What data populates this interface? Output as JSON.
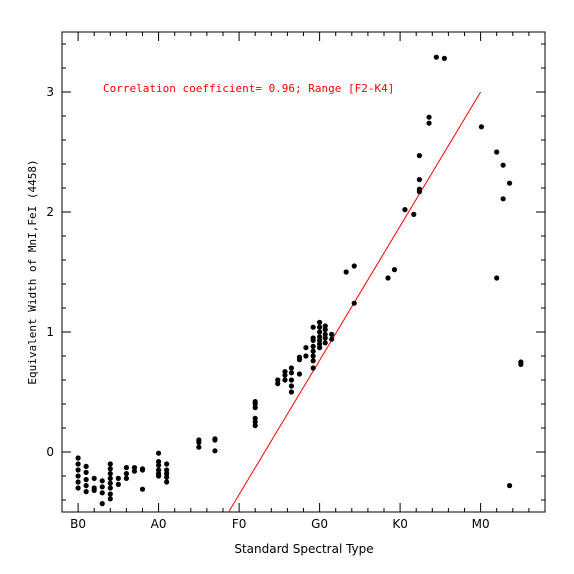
{
  "chart_data": {
    "type": "scatter",
    "xlabel": "Standard Spectral Type",
    "ylabel": "Equivalent Width of MnI,FeI (4458)",
    "annotation": "Correlation coefficient= 0.96; Range [F2-K4]",
    "annotation_color": "#ff0000",
    "point_color": "#000000",
    "fit_color": "#ff0000",
    "grid": false,
    "xlim": [
      -2,
      58
    ],
    "ylim": [
      -0.5,
      3.5
    ],
    "x_ticks": [
      {
        "value": 0,
        "label": "B0"
      },
      {
        "value": 10,
        "label": "A0"
      },
      {
        "value": 20,
        "label": "F0"
      },
      {
        "value": 30,
        "label": "G0"
      },
      {
        "value": 40,
        "label": "K0"
      },
      {
        "value": 50,
        "label": "M0"
      }
    ],
    "y_ticks": [
      {
        "value": 0,
        "label": "0"
      },
      {
        "value": 1,
        "label": "1"
      },
      {
        "value": 2,
        "label": "2"
      },
      {
        "value": 3,
        "label": "3"
      }
    ],
    "fit_line": {
      "x": [
        18.7,
        50
      ],
      "y": [
        -0.5,
        3.0
      ]
    },
    "points": [
      [
        0,
        -0.05
      ],
      [
        0,
        -0.1
      ],
      [
        0,
        -0.15
      ],
      [
        0,
        -0.2
      ],
      [
        0,
        -0.25
      ],
      [
        0,
        -0.3
      ],
      [
        1,
        -0.12
      ],
      [
        1,
        -0.17
      ],
      [
        1,
        -0.23
      ],
      [
        1,
        -0.28
      ],
      [
        1,
        -0.33
      ],
      [
        2,
        -0.22
      ],
      [
        2,
        -0.3
      ],
      [
        2,
        -0.32
      ],
      [
        3,
        -0.24
      ],
      [
        3,
        -0.29
      ],
      [
        3,
        -0.34
      ],
      [
        3,
        -0.43
      ],
      [
        4,
        -0.1
      ],
      [
        4,
        -0.14
      ],
      [
        4,
        -0.18
      ],
      [
        4,
        -0.22
      ],
      [
        4,
        -0.26
      ],
      [
        4,
        -0.3
      ],
      [
        4,
        -0.35
      ],
      [
        4,
        -0.39
      ],
      [
        5,
        -0.22
      ],
      [
        5,
        -0.27
      ],
      [
        6,
        -0.13
      ],
      [
        6,
        -0.18
      ],
      [
        6,
        -0.22
      ],
      [
        7,
        -0.13
      ],
      [
        7,
        -0.16
      ],
      [
        8,
        -0.14
      ],
      [
        8,
        -0.15
      ],
      [
        8,
        -0.31
      ],
      [
        10,
        -0.01
      ],
      [
        10,
        -0.08
      ],
      [
        10,
        -0.11
      ],
      [
        10,
        -0.15
      ],
      [
        10,
        -0.18
      ],
      [
        10,
        -0.2
      ],
      [
        11,
        -0.1
      ],
      [
        11,
        -0.15
      ],
      [
        11,
        -0.18
      ],
      [
        11,
        -0.21
      ],
      [
        11,
        -0.25
      ],
      [
        15,
        0.04
      ],
      [
        15,
        0.08
      ],
      [
        15,
        0.1
      ],
      [
        17,
        0.1
      ],
      [
        17,
        0.11
      ],
      [
        17,
        0.01
      ],
      [
        22,
        0.22
      ],
      [
        22,
        0.25
      ],
      [
        22,
        0.28
      ],
      [
        22,
        0.37
      ],
      [
        22,
        0.4
      ],
      [
        22,
        0.42
      ],
      [
        24.8,
        0.57
      ],
      [
        24.8,
        0.6
      ],
      [
        25.7,
        0.6
      ],
      [
        25.7,
        0.64
      ],
      [
        25.7,
        0.67
      ],
      [
        26.5,
        0.5
      ],
      [
        26.5,
        0.55
      ],
      [
        26.5,
        0.6
      ],
      [
        26.5,
        0.66
      ],
      [
        26.5,
        0.7
      ],
      [
        27.5,
        0.65
      ],
      [
        27.5,
        0.77
      ],
      [
        27.5,
        0.79
      ],
      [
        28.3,
        0.87
      ],
      [
        28.3,
        0.8
      ],
      [
        29.2,
        0.7
      ],
      [
        29.2,
        0.76
      ],
      [
        29.2,
        0.8
      ],
      [
        29.2,
        0.84
      ],
      [
        29.2,
        0.88
      ],
      [
        29.2,
        0.93
      ],
      [
        29.2,
        0.95
      ],
      [
        29.2,
        1.04
      ],
      [
        30,
        0.87
      ],
      [
        30,
        0.9
      ],
      [
        30,
        0.93
      ],
      [
        30,
        0.96
      ],
      [
        30,
        1.0
      ],
      [
        30,
        1.04
      ],
      [
        30,
        1.08
      ],
      [
        30.7,
        0.91
      ],
      [
        30.7,
        0.95
      ],
      [
        30.7,
        0.98
      ],
      [
        30.7,
        1.02
      ],
      [
        30.7,
        1.05
      ],
      [
        31.5,
        0.94
      ],
      [
        31.5,
        0.98
      ],
      [
        33.3,
        1.5
      ],
      [
        34.3,
        1.55
      ],
      [
        34.3,
        1.24
      ],
      [
        38.5,
        1.45
      ],
      [
        39.3,
        1.52
      ],
      [
        40.6,
        2.02
      ],
      [
        41.7,
        1.98
      ],
      [
        42.4,
        2.17
      ],
      [
        42.4,
        2.19
      ],
      [
        42.4,
        2.27
      ],
      [
        42.4,
        2.47
      ],
      [
        43.6,
        2.74
      ],
      [
        43.6,
        2.79
      ],
      [
        44.5,
        3.29
      ],
      [
        45.5,
        3.28
      ],
      [
        50.1,
        2.71
      ],
      [
        52,
        2.5
      ],
      [
        52,
        1.45
      ],
      [
        52.8,
        2.39
      ],
      [
        52.8,
        2.11
      ],
      [
        53.6,
        2.24
      ],
      [
        53.6,
        -0.28
      ],
      [
        55,
        0.75
      ],
      [
        55,
        0.73
      ]
    ]
  }
}
